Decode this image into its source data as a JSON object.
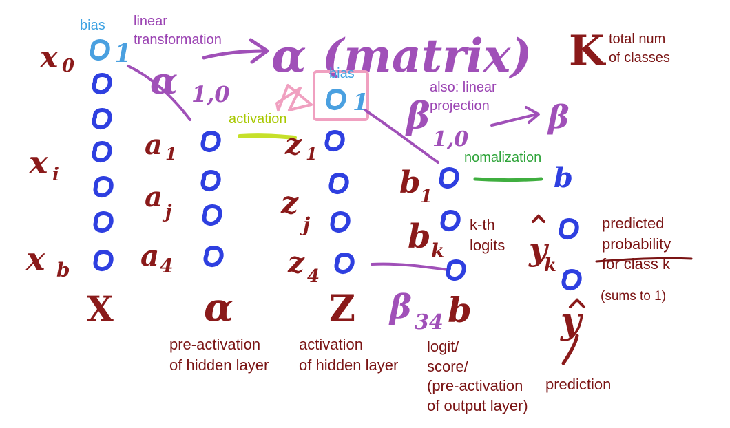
{
  "colors": {
    "node_blue": "#2e3fe0",
    "bias_blue": "#4aa0e0",
    "dark_red": "#7a1414",
    "purple": "#a050b8",
    "pink": "#f0a0c0",
    "activation_yellow": "#c6e02a",
    "normalization_green": "#3fae3f"
  },
  "annotations": {
    "bias_input": "bias",
    "linear_transformation": "linear\ntransformation",
    "total_classes": "total num\nof classes",
    "bias_hidden": "bias",
    "also_linear_projection": "also: linear\nprojection",
    "activation": "activation",
    "normalization": "nomalization",
    "kth_logits": "k-th\nlogits",
    "predicted_probability": "predicted\nprobability\nfor class k",
    "sums_to_one": "(sums to 1)",
    "pre_activation_hidden": "pre-activation\nof hidden layer",
    "activation_hidden": "activation\nof hidden layer",
    "logit_score": "logit/\nscore/\n(pre-activation\nof output layer)",
    "prediction": "prediction"
  },
  "symbols": {
    "alpha_matrix": "α (matrix)",
    "alpha_10": "α",
    "alpha_10_sub": "1,0",
    "beta_10": "β",
    "beta_10_sub": "1,0",
    "beta_right": "β",
    "beta_34": "β",
    "beta_34_sub": "34",
    "K": "K",
    "x0": "x",
    "x0_sub": "0",
    "xi": "x",
    "xi_sub": "i",
    "xb": "x",
    "xb_sub": "b",
    "X": "X",
    "a1": "a",
    "a1_sub": "1",
    "aj": "a",
    "aj_sub": "j",
    "a4": "a",
    "a4_sub": "4",
    "a_vec": "α",
    "z1": "z",
    "z1_sub": "1",
    "zj": "z",
    "zj_sub": "j",
    "z4": "z",
    "z4_sub": "4",
    "Z": "Z",
    "b1": "b",
    "b1_sub": "1",
    "bk": "b",
    "bk_sub": "k",
    "b_vec": "b",
    "b_norm": "b",
    "yk_hat": "y",
    "yk_sub": "k",
    "y_hat": "y",
    "bias_node_value_input": "1",
    "bias_node_value_hidden": "1"
  }
}
